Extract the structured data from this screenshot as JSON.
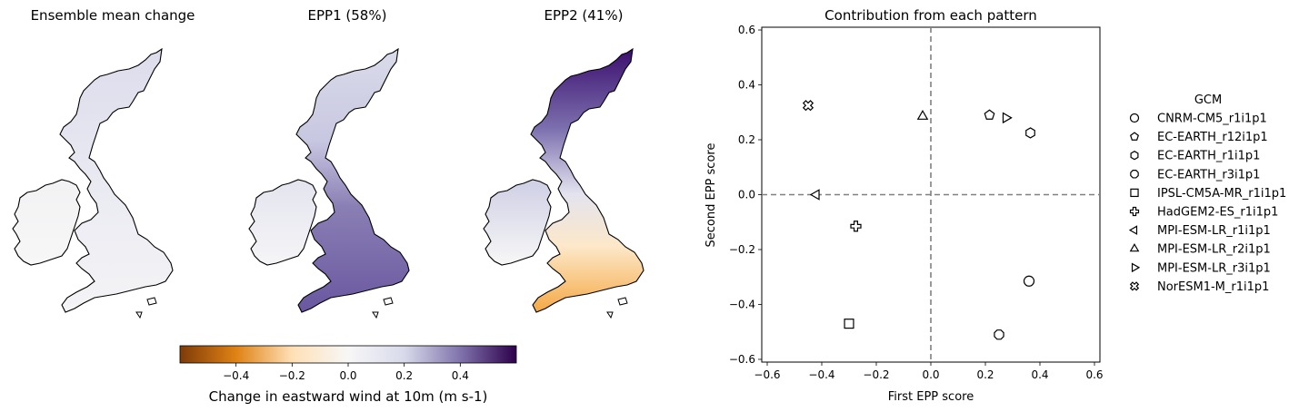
{
  "maps": {
    "titles": [
      "Ensemble mean change",
      "EPP1 (58%)",
      "EPP2 (41%)"
    ]
  },
  "colorbar": {
    "label": "Change in eastward wind at 10m (m s-1)",
    "range": [
      -0.6,
      0.6
    ],
    "ticks": [
      -0.4,
      -0.2,
      0.0,
      0.2,
      0.4
    ],
    "tick_labels": [
      "−0.4",
      "−0.2",
      "0.0",
      "0.2",
      "0.4"
    ],
    "colors": [
      "#7f3b08",
      "#e08214",
      "#fee0b6",
      "#f7f7f7",
      "#d8daeb",
      "#8073ac",
      "#2d004b"
    ]
  },
  "chart_data": {
    "type": "scatter",
    "title": "Contribution from each pattern",
    "xlabel": "First EPP score",
    "ylabel": "Second EPP score",
    "xlim": [
      -0.62,
      0.62
    ],
    "ylim": [
      -0.61,
      0.61
    ],
    "xticks": [
      -0.6,
      -0.4,
      -0.2,
      0.0,
      0.2,
      0.4,
      0.6
    ],
    "xtick_labels": [
      "−0.6",
      "−0.4",
      "−0.2",
      "0.0",
      "0.2",
      "0.4",
      "0.6"
    ],
    "yticks": [
      -0.6,
      -0.4,
      -0.2,
      0.0,
      0.2,
      0.4,
      0.6
    ],
    "ytick_labels": [
      "−0.6",
      "−0.4",
      "−0.2",
      "0.0",
      "0.2",
      "0.4",
      "0.6"
    ],
    "reference_lines": {
      "x": 0,
      "y": 0,
      "style": "dashed",
      "color": "#808080"
    },
    "legend_title": "GCM",
    "legend_position": "right",
    "series": [
      {
        "name": "CNRM-CM5_r1i1p1",
        "marker": "circle",
        "x": 0.36,
        "y": -0.315
      },
      {
        "name": "EC-EARTH_r12i1p1",
        "marker": "pentagon",
        "x": 0.215,
        "y": 0.29
      },
      {
        "name": "EC-EARTH_r1i1p1",
        "marker": "hexagon",
        "x": 0.365,
        "y": 0.225
      },
      {
        "name": "EC-EARTH_r3i1p1",
        "marker": "octagon",
        "x": 0.25,
        "y": -0.51
      },
      {
        "name": "IPSL-CM5A-MR_r1i1p1",
        "marker": "square",
        "x": -0.3,
        "y": -0.47
      },
      {
        "name": "HadGEM2-ES_r1i1p1",
        "marker": "plus",
        "x": -0.275,
        "y": -0.115
      },
      {
        "name": "MPI-ESM-LR_r1i1p1",
        "marker": "triangle-left",
        "x": -0.42,
        "y": 0.0
      },
      {
        "name": "MPI-ESM-LR_r2i1p1",
        "marker": "triangle-up",
        "x": -0.03,
        "y": 0.285
      },
      {
        "name": "MPI-ESM-LR_r3i1p1",
        "marker": "triangle-right",
        "x": 0.275,
        "y": 0.28
      },
      {
        "name": "NorESM1-M_r1i1p1",
        "marker": "x-filled",
        "x": -0.45,
        "y": 0.325
      }
    ]
  }
}
